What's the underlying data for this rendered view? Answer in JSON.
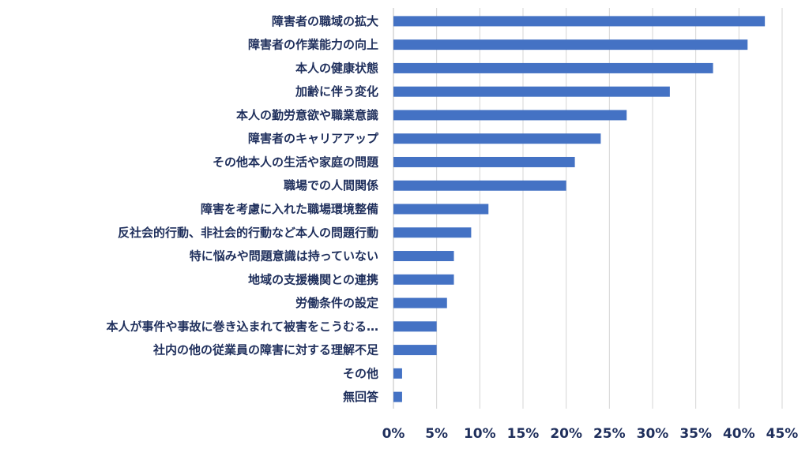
{
  "chart_data": {
    "type": "bar",
    "orientation": "horizontal",
    "categories": [
      "障害者の職域の拡大",
      "障害者の作業能力の向上",
      "本人の健康状態",
      "加齢に伴う変化",
      "本人の勤労意欲や職業意識",
      "障害者のキャリアアップ",
      "その他本人の生活や家庭の問題",
      "職場での人間関係",
      "障害を考慮に入れた職場環境整備",
      "反社会的行動、非社会的行動など本人の問題行動",
      "特に悩みや問題意識は持っていない",
      "地域の支援機関との連携",
      "労働条件の設定",
      "本人が事件や事故に巻き込まれて被害をこうむる…",
      "社内の他の従業員の障害に対する理解不足",
      "その他",
      "無回答"
    ],
    "values": [
      43,
      41,
      37,
      32,
      27,
      24,
      21,
      20,
      11,
      9,
      7,
      7,
      6.2,
      5,
      5,
      1,
      1
    ],
    "xlim": [
      0,
      45
    ],
    "x_ticks": [
      0,
      5,
      10,
      15,
      20,
      25,
      30,
      35,
      40,
      45
    ],
    "x_tick_labels": [
      "0%",
      "5%",
      "10%",
      "15%",
      "20%",
      "25%",
      "30%",
      "35%",
      "40%",
      "45%"
    ],
    "title": "",
    "xlabel": "",
    "ylabel": "",
    "grid": "vertical",
    "bar_color": "#4472c4",
    "text_color": "#1f2f5c",
    "grid_color": "#d4d4d4"
  }
}
